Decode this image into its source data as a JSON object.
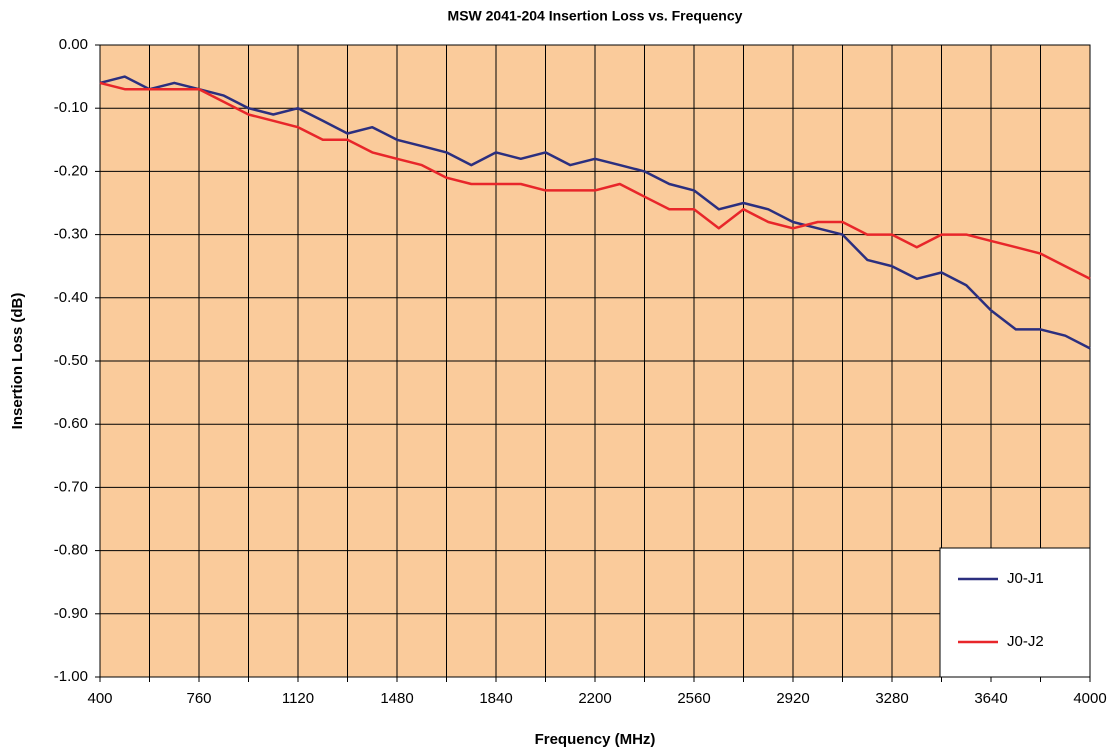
{
  "chart_data": {
    "type": "line",
    "title": "MSW 2041-204 Insertion Loss vs. Frequency",
    "x_label": "Frequency (MHz)",
    "y_label": "Insertion Loss (dB)",
    "x": [
      400,
      490,
      580,
      670,
      760,
      850,
      940,
      1030,
      1120,
      1210,
      1300,
      1390,
      1480,
      1570,
      1660,
      1750,
      1840,
      1930,
      2020,
      2110,
      2200,
      2290,
      2380,
      2470,
      2560,
      2650,
      2740,
      2830,
      2920,
      3010,
      3100,
      3190,
      3280,
      3370,
      3460,
      3550,
      3640,
      3730,
      3820,
      3910,
      4000
    ],
    "series": [
      {
        "name": "J0-J1",
        "color": "#2b2f7f",
        "values": [
          -0.06,
          -0.05,
          -0.07,
          -0.06,
          -0.07,
          -0.08,
          -0.1,
          -0.11,
          -0.1,
          -0.12,
          -0.14,
          -0.13,
          -0.15,
          -0.16,
          -0.17,
          -0.19,
          -0.17,
          -0.18,
          -0.17,
          -0.19,
          -0.18,
          -0.19,
          -0.2,
          -0.22,
          -0.23,
          -0.26,
          -0.25,
          -0.26,
          -0.28,
          -0.29,
          -0.3,
          -0.34,
          -0.35,
          -0.37,
          -0.36,
          -0.38,
          -0.42,
          -0.45,
          -0.45,
          -0.46,
          -0.48
        ]
      },
      {
        "name": "J0-J2",
        "color": "#e8262a",
        "values": [
          -0.06,
          -0.07,
          -0.07,
          -0.07,
          -0.07,
          -0.09,
          -0.11,
          -0.12,
          -0.13,
          -0.15,
          -0.15,
          -0.17,
          -0.18,
          -0.19,
          -0.21,
          -0.22,
          -0.22,
          -0.22,
          -0.23,
          -0.23,
          -0.23,
          -0.22,
          -0.24,
          -0.26,
          -0.26,
          -0.29,
          -0.26,
          -0.28,
          -0.29,
          -0.28,
          -0.28,
          -0.3,
          -0.3,
          -0.32,
          -0.3,
          -0.3,
          -0.31,
          -0.32,
          -0.33,
          -0.35,
          -0.37
        ]
      }
    ],
    "xlim": [
      400,
      4000
    ],
    "xticks": [
      400,
      760,
      1120,
      1480,
      1840,
      2200,
      2560,
      2920,
      3280,
      3640,
      4000
    ],
    "xminorticks": [
      580,
      940,
      1300,
      1660,
      2020,
      2380,
      2740,
      3100,
      3460,
      3820
    ],
    "ylim": [
      -1,
      0
    ],
    "yticks": [
      {
        "value": 0,
        "label": "0.00"
      },
      {
        "value": -0.1,
        "label": "-0.10"
      },
      {
        "value": -0.2,
        "label": "-0.20"
      },
      {
        "value": -0.3,
        "label": "-0.30"
      },
      {
        "value": -0.4,
        "label": "-0.40"
      },
      {
        "value": -0.5,
        "label": "-0.50"
      },
      {
        "value": -0.6,
        "label": "-0.60"
      },
      {
        "value": -0.7,
        "label": "-0.70"
      },
      {
        "value": -0.8,
        "label": "-0.80"
      },
      {
        "value": -0.9,
        "label": "-0.90"
      },
      {
        "value": -1,
        "label": "-1.00"
      }
    ],
    "grid": true,
    "plot_background": "#facb9b",
    "legend_position": "lower right"
  }
}
